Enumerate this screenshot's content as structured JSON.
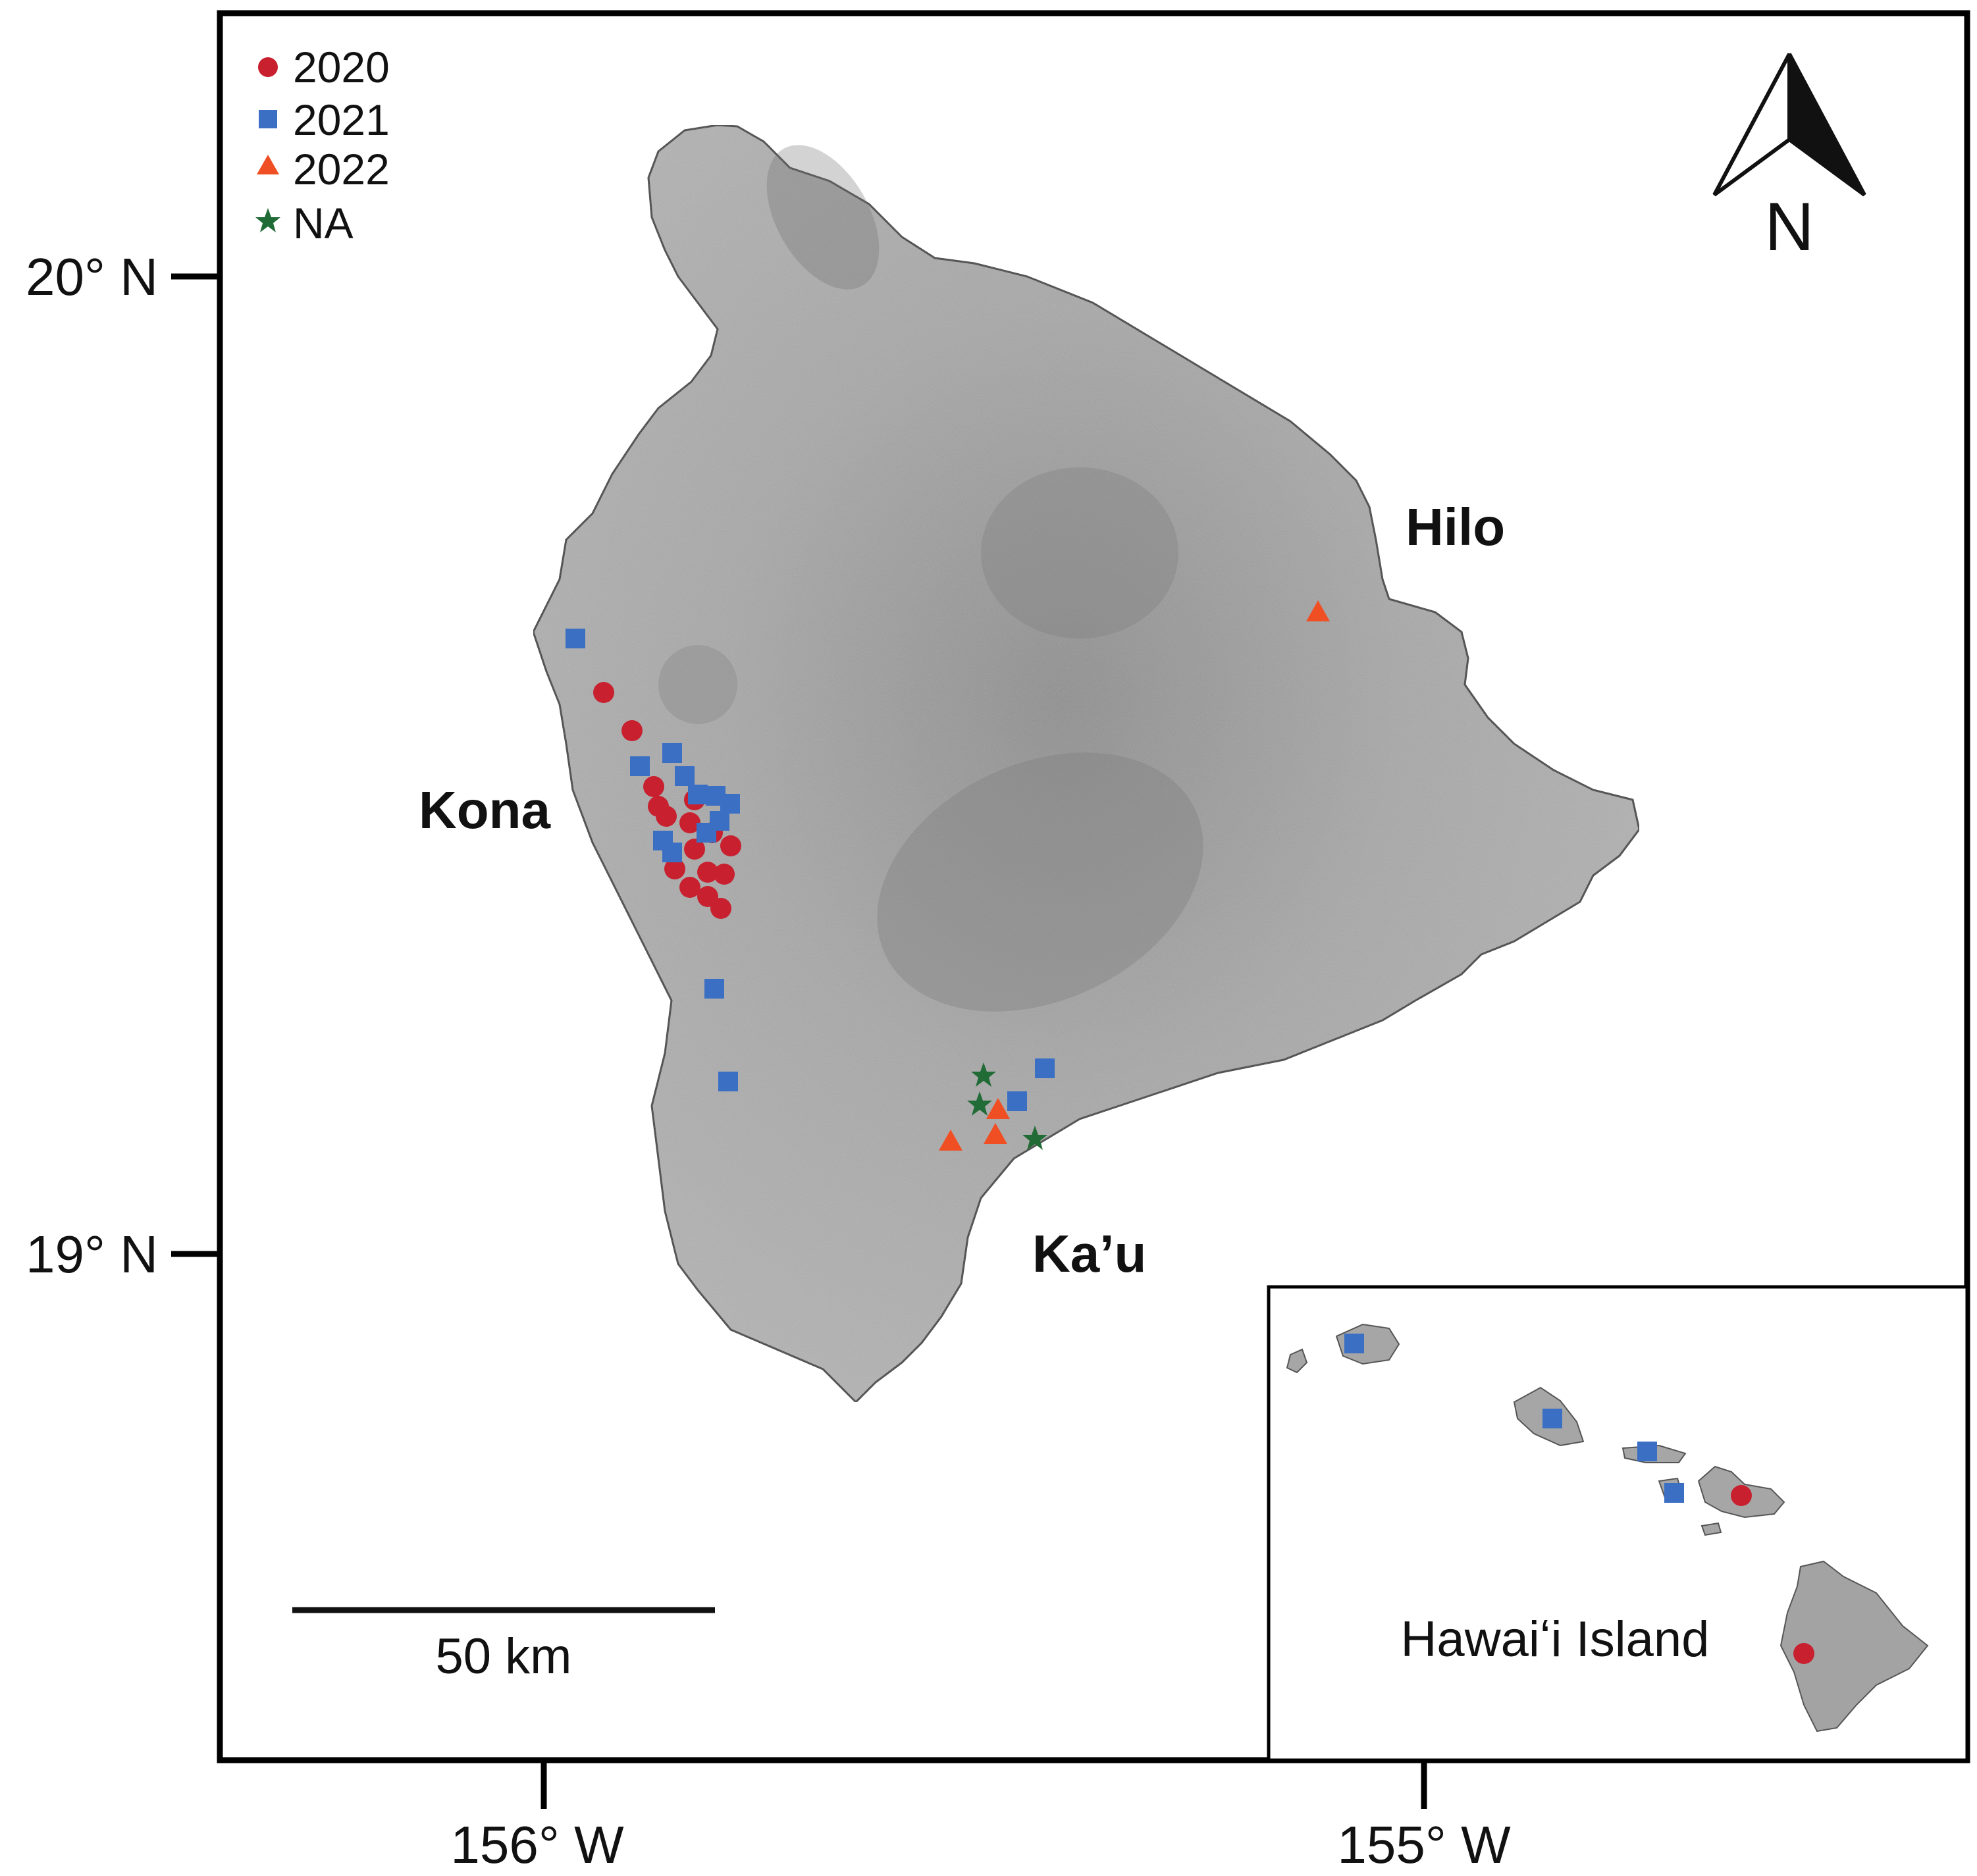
{
  "map": {
    "island_name": "Hawaiʻi Island",
    "axes": {
      "lat_ticks": [
        "20° N",
        "19° N"
      ],
      "lon_ticks": [
        "156° W",
        "155° W"
      ]
    },
    "places": [
      "Hilo",
      "Kona",
      "Ka’u"
    ],
    "legend": [
      {
        "label": "2020",
        "symbol": "circle",
        "color": "#c8202f"
      },
      {
        "label": "2021",
        "symbol": "square",
        "color": "#3a6fc4"
      },
      {
        "label": "2022",
        "symbol": "triangle",
        "color": "#ef4f23"
      },
      {
        "label": "NA",
        "symbol": "star",
        "color": "#216b36"
      }
    ],
    "north_arrow_label": "N",
    "scale_bar_label": "50 km",
    "inset_label": "Hawaiʻi Island",
    "colors": {
      "land": "#a9a9a9",
      "land_dark": "#7c7c7c",
      "frame": "#000000"
    }
  }
}
